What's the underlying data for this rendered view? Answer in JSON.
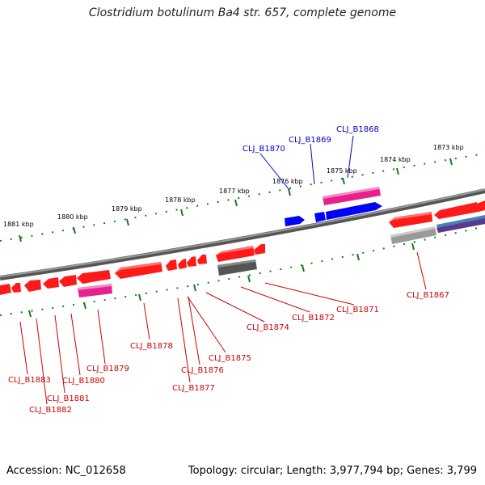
{
  "title": "Clostridium botulinum Ba4 str. 657, complete genome",
  "accession": "Accession: NC_012658",
  "topology": "Topology: circular; Length: 3,977,794 bp; Genes: 3,799",
  "colors": {
    "backbone": "#8a8a8a",
    "tick": "#1a7a1a",
    "gene_red": "#ff1a1a",
    "gene_blue": "#0000ff",
    "gene_magenta": "#e8208e",
    "gene_gray": "#9a9a9a",
    "gene_dark": "#555555",
    "label_red": "#cc0000",
    "label_blue": "#0000cc"
  },
  "kbp_labels": [
    "1881 kbp",
    "1880 kbp",
    "1879 kbp",
    "1878 kbp",
    "1877 kbp",
    "1876 kbp",
    "1875 kbp",
    "1874 kbp",
    "1873 kbp"
  ],
  "gene_labels": {
    "CLJ_B1868": "CLJ_B1868",
    "CLJ_B1869": "CLJ_B1869",
    "CLJ_B1870": "CLJ_B1870",
    "CLJ_B1867": "CLJ_B1867",
    "CLJ_B1871": "CLJ_B1871",
    "CLJ_B1872": "CLJ_B1872",
    "CLJ_B1874": "CLJ_B1874",
    "CLJ_B1875": "CLJ_B1875",
    "CLJ_B1876": "CLJ_B1876",
    "CLJ_B1877": "CLJ_B1877",
    "CLJ_B1878": "CLJ_B1878",
    "CLJ_B1879": "CLJ_B1879",
    "CLJ_B1880": "CLJ_B1880",
    "CLJ_B1881": "CLJ_B1881",
    "CLJ_B1882": "CLJ_B1882",
    "CLJ_B1883": "CLJ_B1883"
  }
}
